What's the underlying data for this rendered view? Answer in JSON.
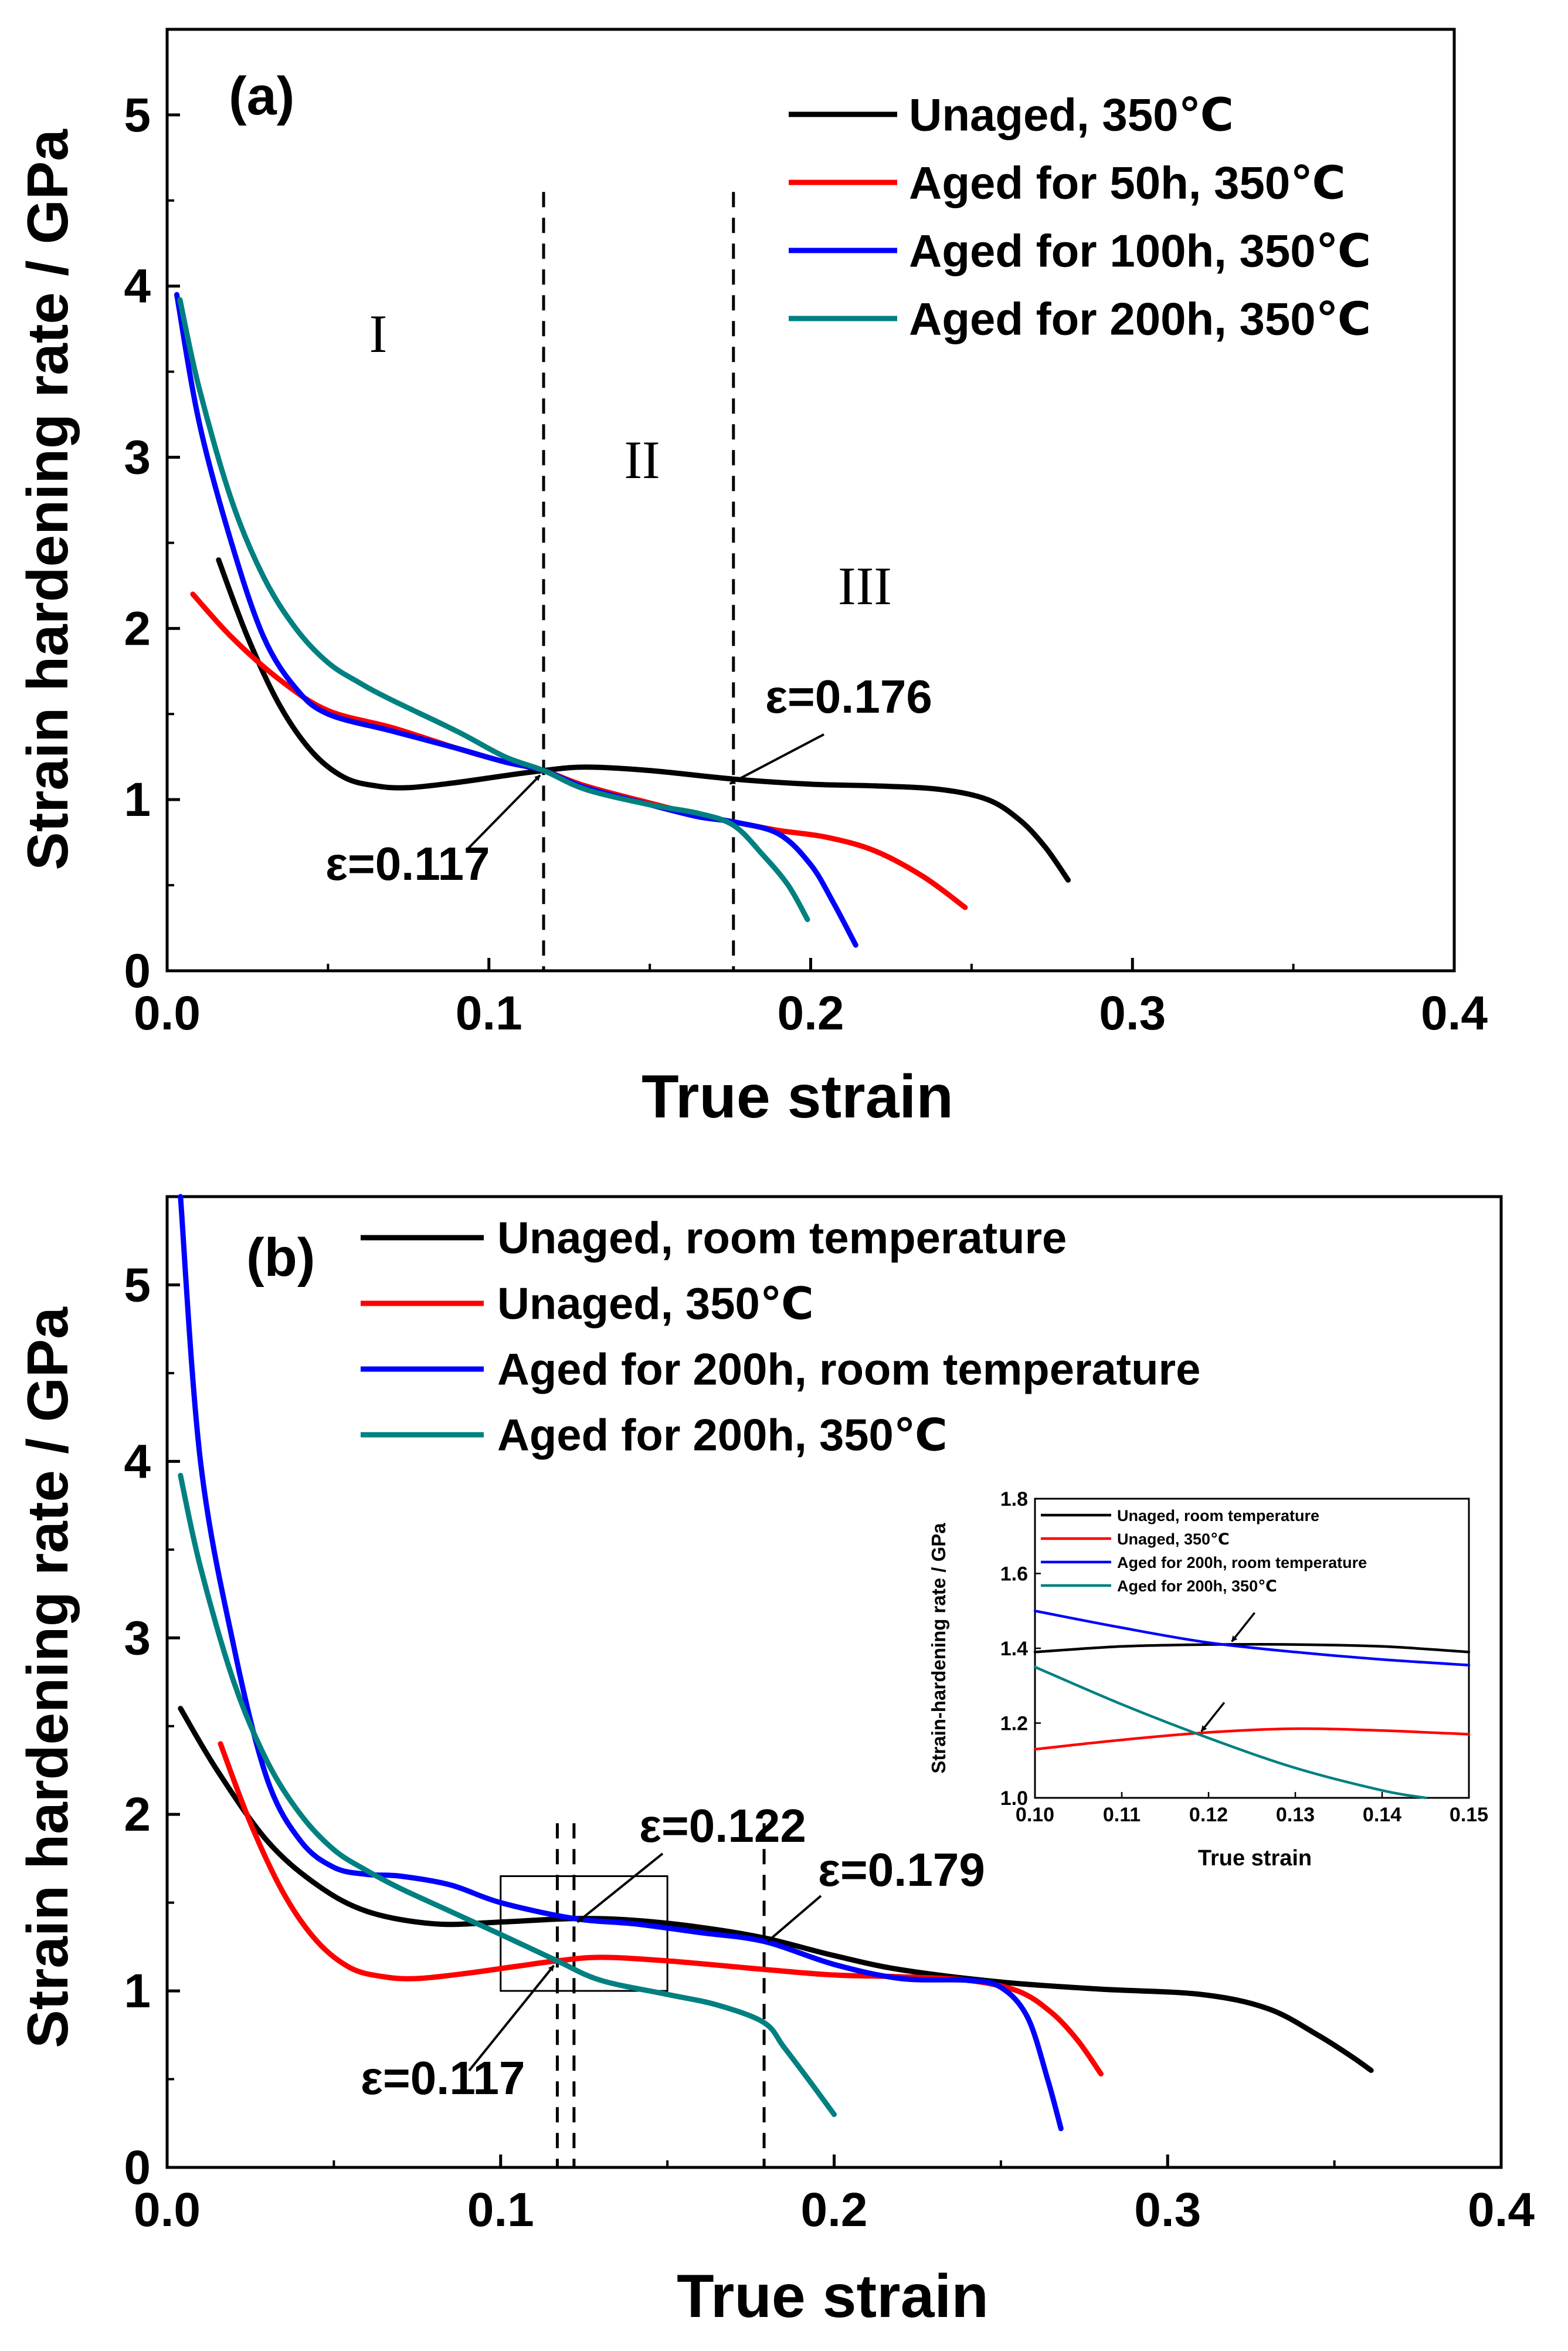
{
  "chart_data": [
    {
      "type": "line",
      "panel_label": "(a)",
      "xlabel": "True strain",
      "ylabel": "Strain hardening rate / GPa",
      "xlim": [
        0,
        0.4
      ],
      "ylim": [
        0,
        5.5
      ],
      "xticks": [
        0.0,
        0.1,
        0.2,
        0.3,
        0.4
      ],
      "xtick_labels": [
        "0.0",
        "0.1",
        "0.2",
        "0.3",
        "0.4"
      ],
      "yticks": [
        0,
        1,
        2,
        3,
        4,
        5
      ],
      "ytick_labels": [
        "0",
        "1",
        "2",
        "3",
        "4",
        "5"
      ],
      "grid": false,
      "legend_position": "top-right",
      "series": [
        {
          "name": "Unaged, 350℃",
          "color": "#000000",
          "x": [
            0.016,
            0.025,
            0.035,
            0.045,
            0.055,
            0.065,
            0.075,
            0.09,
            0.105,
            0.117,
            0.13,
            0.15,
            0.176,
            0.2,
            0.22,
            0.24,
            0.255,
            0.265,
            0.273,
            0.28
          ],
          "y": [
            2.4,
            1.95,
            1.55,
            1.28,
            1.13,
            1.08,
            1.07,
            1.1,
            1.14,
            1.17,
            1.19,
            1.17,
            1.12,
            1.09,
            1.08,
            1.06,
            1.0,
            0.88,
            0.72,
            0.53
          ]
        },
        {
          "name": "Aged for 50h, 350℃",
          "color": "#ff0000",
          "x": [
            0.008,
            0.02,
            0.035,
            0.05,
            0.07,
            0.09,
            0.105,
            0.117,
            0.13,
            0.15,
            0.165,
            0.176,
            0.19,
            0.205,
            0.22,
            0.235,
            0.248
          ],
          "y": [
            2.2,
            1.95,
            1.7,
            1.52,
            1.42,
            1.3,
            1.22,
            1.17,
            1.08,
            0.98,
            0.91,
            0.87,
            0.82,
            0.78,
            0.7,
            0.55,
            0.37
          ]
        },
        {
          "name": "Aged for 100h, 350℃",
          "color": "#0000ff",
          "x": [
            0.003,
            0.01,
            0.02,
            0.03,
            0.04,
            0.05,
            0.07,
            0.09,
            0.105,
            0.117,
            0.13,
            0.15,
            0.165,
            0.176,
            0.19,
            0.2,
            0.207,
            0.214
          ],
          "y": [
            3.95,
            3.2,
            2.5,
            1.95,
            1.65,
            1.5,
            1.4,
            1.3,
            1.22,
            1.17,
            1.07,
            0.97,
            0.9,
            0.87,
            0.8,
            0.62,
            0.4,
            0.15
          ]
        },
        {
          "name": "Aged for 200h, 350℃",
          "color": "#008080",
          "x": [
            0.004,
            0.01,
            0.02,
            0.03,
            0.04,
            0.05,
            0.06,
            0.07,
            0.09,
            0.105,
            0.117,
            0.13,
            0.15,
            0.165,
            0.176,
            0.185,
            0.193,
            0.199
          ],
          "y": [
            3.92,
            3.4,
            2.75,
            2.3,
            2.0,
            1.8,
            1.68,
            1.58,
            1.4,
            1.25,
            1.17,
            1.06,
            0.97,
            0.92,
            0.85,
            0.68,
            0.5,
            0.3
          ]
        }
      ],
      "dashed_lines_x": [
        0.117,
        0.176
      ],
      "annotations": [
        {
          "text": "ε=0.117",
          "target": [
            0.117,
            1.17
          ]
        },
        {
          "text": "ε=0.176",
          "target": [
            0.176,
            1.12
          ]
        }
      ],
      "region_labels": [
        "I",
        "II",
        "III"
      ]
    },
    {
      "type": "line",
      "panel_label": "(b)",
      "xlabel": "True strain",
      "ylabel": "Strain hardening rate / GPa",
      "xlim": [
        0,
        0.4
      ],
      "ylim": [
        0,
        5.5
      ],
      "xticks": [
        0.0,
        0.1,
        0.2,
        0.3,
        0.4
      ],
      "xtick_labels": [
        "0.0",
        "0.1",
        "0.2",
        "0.3",
        "0.4"
      ],
      "yticks": [
        0,
        1,
        2,
        3,
        4,
        5
      ],
      "ytick_labels": [
        "0",
        "1",
        "2",
        "3",
        "4",
        "5"
      ],
      "grid": false,
      "legend_position": "top-left",
      "series": [
        {
          "name": "Unaged, room temperature",
          "color": "#000000",
          "x": [
            0.004,
            0.015,
            0.03,
            0.045,
            0.06,
            0.08,
            0.1,
            0.122,
            0.14,
            0.16,
            0.179,
            0.2,
            0.22,
            0.25,
            0.28,
            0.31,
            0.33,
            0.345,
            0.355,
            0.361
          ],
          "y": [
            2.6,
            2.25,
            1.85,
            1.6,
            1.45,
            1.38,
            1.39,
            1.41,
            1.4,
            1.36,
            1.3,
            1.2,
            1.12,
            1.05,
            1.01,
            0.98,
            0.9,
            0.75,
            0.63,
            0.55
          ]
        },
        {
          "name": "Unaged, 350℃",
          "color": "#ff0000",
          "x": [
            0.016,
            0.025,
            0.035,
            0.045,
            0.055,
            0.065,
            0.075,
            0.09,
            0.105,
            0.117,
            0.13,
            0.15,
            0.18,
            0.2,
            0.22,
            0.24,
            0.255,
            0.265,
            0.273,
            0.28
          ],
          "y": [
            2.4,
            1.95,
            1.55,
            1.28,
            1.13,
            1.08,
            1.07,
            1.1,
            1.14,
            1.17,
            1.19,
            1.17,
            1.12,
            1.09,
            1.08,
            1.06,
            1.0,
            0.88,
            0.72,
            0.53
          ]
        },
        {
          "name": "Aged for 200h, room temperature",
          "color": "#0000ff",
          "x": [
            0.004,
            0.01,
            0.02,
            0.03,
            0.04,
            0.05,
            0.06,
            0.07,
            0.085,
            0.1,
            0.122,
            0.14,
            0.16,
            0.179,
            0.2,
            0.22,
            0.24,
            0.25,
            0.258,
            0.264,
            0.268
          ],
          "y": [
            5.5,
            4.0,
            2.95,
            2.2,
            1.85,
            1.7,
            1.66,
            1.65,
            1.6,
            1.5,
            1.41,
            1.38,
            1.33,
            1.28,
            1.15,
            1.07,
            1.06,
            1.02,
            0.85,
            0.5,
            0.22
          ]
        },
        {
          "name": "Aged for 200h, 350℃",
          "color": "#008080",
          "x": [
            0.004,
            0.01,
            0.02,
            0.03,
            0.04,
            0.05,
            0.06,
            0.07,
            0.085,
            0.1,
            0.117,
            0.13,
            0.15,
            0.165,
            0.179,
            0.185,
            0.193,
            0.2
          ],
          "y": [
            3.92,
            3.4,
            2.75,
            2.3,
            2.0,
            1.8,
            1.68,
            1.58,
            1.45,
            1.32,
            1.17,
            1.06,
            0.98,
            0.92,
            0.82,
            0.68,
            0.48,
            0.3
          ]
        }
      ],
      "dashed_lines_x": [
        0.117,
        0.122,
        0.179
      ],
      "annotations": [
        {
          "text": "ε=0.122",
          "target": [
            0.122,
            1.41
          ]
        },
        {
          "text": "ε=0.179",
          "target": [
            0.179,
            1.3
          ]
        },
        {
          "text": "ε=0.117",
          "target": [
            0.117,
            1.17
          ]
        }
      ],
      "zoom_box": {
        "x": [
          0.1,
          0.15
        ],
        "y": [
          1.0,
          1.65
        ]
      },
      "inset": {
        "type": "line",
        "xlabel": "True strain",
        "ylabel": "Strain-hardening rate / GPa",
        "xlim": [
          0.1,
          0.15
        ],
        "ylim": [
          1.0,
          1.8
        ],
        "xticks": [
          0.1,
          0.11,
          0.12,
          0.13,
          0.14,
          0.15
        ],
        "xtick_labels": [
          "0.10",
          "0.11",
          "0.12",
          "0.13",
          "0.14",
          "0.15"
        ],
        "yticks": [
          1.0,
          1.2,
          1.4,
          1.6,
          1.8
        ],
        "ytick_labels": [
          "1.0",
          "1.2",
          "1.4",
          "1.6",
          "1.8"
        ],
        "legend_position": "top-left",
        "series": [
          {
            "name": "Unaged, room temperature",
            "color": "#000000",
            "x": [
              0.1,
              0.11,
              0.12,
              0.13,
              0.14,
              0.15
            ],
            "y": [
              1.39,
              1.405,
              1.41,
              1.41,
              1.405,
              1.39
            ]
          },
          {
            "name": "Unaged, 350℃",
            "color": "#ff0000",
            "x": [
              0.1,
              0.11,
              0.12,
              0.13,
              0.14,
              0.15
            ],
            "y": [
              1.13,
              1.155,
              1.175,
              1.185,
              1.18,
              1.17
            ]
          },
          {
            "name": "Aged for 200h, room temperature",
            "color": "#0000ff",
            "x": [
              0.1,
              0.11,
              0.12,
              0.13,
              0.14,
              0.15
            ],
            "y": [
              1.5,
              1.455,
              1.415,
              1.39,
              1.37,
              1.355
            ]
          },
          {
            "name": "Aged for 200h, 350℃",
            "color": "#008080",
            "x": [
              0.1,
              0.11,
              0.12,
              0.13,
              0.14,
              0.145
            ],
            "y": [
              1.35,
              1.25,
              1.16,
              1.08,
              1.02,
              1.0
            ]
          }
        ],
        "arrow_targets": [
          [
            0.122,
            1.415
          ],
          [
            0.1185,
            1.175
          ]
        ]
      }
    }
  ]
}
